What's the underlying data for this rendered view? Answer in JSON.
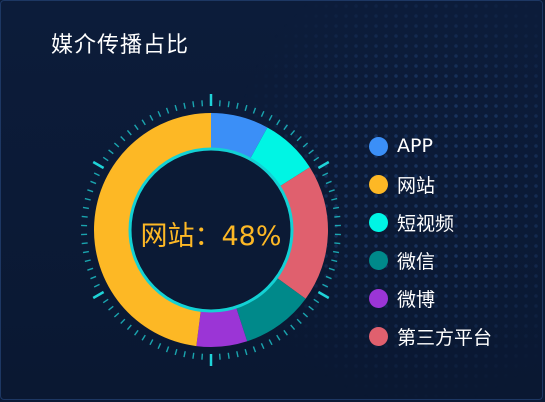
{
  "title": "媒介传播占比",
  "chart_data": {
    "type": "pie",
    "style": "donut",
    "title": "媒介传播占比",
    "center_label": {
      "name": "网站",
      "separator": "：",
      "value_text": "48%"
    },
    "slices": [
      {
        "name": "APP",
        "value": 8,
        "color": "#3b8ff7"
      },
      {
        "name": "网站",
        "value": 48,
        "color": "#fdb825"
      },
      {
        "name": "短视频",
        "value": 8,
        "color": "#00f5e4"
      },
      {
        "name": "微信",
        "value": 10,
        "color": "#00898a"
      },
      {
        "name": "微博",
        "value": 7,
        "color": "#9b35d6"
      },
      {
        "name": "第三方平台",
        "value": 19,
        "color": "#e0606e"
      }
    ],
    "drawing_order": [
      "APP",
      "短视频",
      "第三方平台",
      "微信",
      "微博",
      "网站"
    ],
    "legend_position": "right",
    "tick_ring_color": "#1fd3d8"
  }
}
